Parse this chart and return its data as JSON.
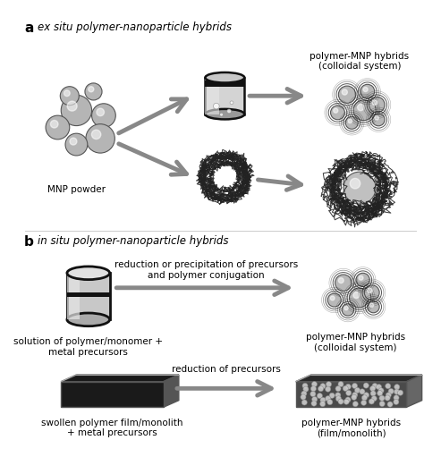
{
  "title_a": "ex situ polymer-nanoparticle hybrids",
  "title_b": "in situ polymer-nanoparticle hybrids",
  "label_a": "a",
  "label_b": "b",
  "label_mnp": "MNP powder",
  "label_sol": "solution of polymer/monomer +\nmetal precursors",
  "label_swollen": "swollen polymer film/monolith\n+ metal precursors",
  "label_colloidal_a": "polymer-MNP hybrids\n(colloidal system)",
  "label_colloidal_b": "polymer-MNP hybrids\n(colloidal system)",
  "label_film": "polymer-MNP hybrids\n(film/monolith)",
  "label_reduction": "reduction or precipitation of precursors\nand polymer conjugation",
  "label_reduction2": "reduction of precursors",
  "bg_color": "#ffffff",
  "arrow_color": "#888888",
  "text_color": "#000000"
}
